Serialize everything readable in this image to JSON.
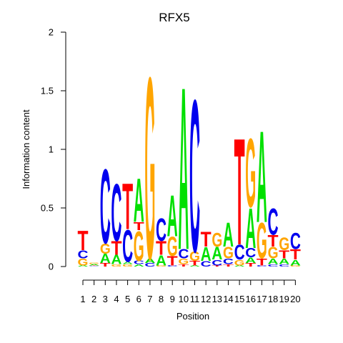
{
  "chart_data": {
    "type": "sequence-logo",
    "title": "RFX5",
    "xlabel": "Position",
    "ylabel": "Information content",
    "ylim": [
      0,
      2
    ],
    "y_ticks": [
      "0",
      "0.5",
      "1",
      "1.5",
      "2"
    ],
    "x_ticks": [
      "1",
      "2",
      "3",
      "4",
      "5",
      "6",
      "7",
      "8",
      "9",
      "10",
      "11",
      "12",
      "13",
      "14",
      "15",
      "16",
      "17",
      "18",
      "19",
      "20"
    ],
    "colors": {
      "A": "#00e000",
      "C": "#0000ee",
      "G": "#ffa500",
      "T": "#ff0000"
    },
    "positions": [
      {
        "pos": 1,
        "stack": [
          {
            "l": "A",
            "h": 0.01
          },
          {
            "l": "G",
            "h": 0.06
          },
          {
            "l": "C",
            "h": 0.07
          },
          {
            "l": "T",
            "h": 0.17
          }
        ]
      },
      {
        "pos": 2,
        "stack": [
          {
            "l": "C",
            "h": 0.005
          },
          {
            "l": "T",
            "h": 0.005
          },
          {
            "l": "A",
            "h": 0.01
          },
          {
            "l": "G",
            "h": 0.01
          }
        ]
      },
      {
        "pos": 3,
        "stack": [
          {
            "l": "T",
            "h": 0.03
          },
          {
            "l": "A",
            "h": 0.08
          },
          {
            "l": "G",
            "h": 0.09
          },
          {
            "l": "C",
            "h": 0.65
          }
        ]
      },
      {
        "pos": 4,
        "stack": [
          {
            "l": "G",
            "h": 0.02
          },
          {
            "l": "A",
            "h": 0.08
          },
          {
            "l": "T",
            "h": 0.12
          },
          {
            "l": "C",
            "h": 0.5
          }
        ]
      },
      {
        "pos": 5,
        "stack": [
          {
            "l": "G",
            "h": 0.02
          },
          {
            "l": "A",
            "h": 0.02
          },
          {
            "l": "C",
            "h": 0.28
          },
          {
            "l": "T",
            "h": 0.4
          }
        ]
      },
      {
        "pos": 6,
        "stack": [
          {
            "l": "A",
            "h": 0.02
          },
          {
            "l": "C",
            "h": 0.03
          },
          {
            "l": "G",
            "h": 0.26
          },
          {
            "l": "T",
            "h": 0.07
          },
          {
            "l": "A",
            "h": 0.38
          }
        ]
      },
      {
        "pos": 7,
        "stack": [
          {
            "l": "C",
            "h": 0.03
          },
          {
            "l": "A",
            "h": 0.04
          },
          {
            "l": "G",
            "h": 1.59
          }
        ]
      },
      {
        "pos": 8,
        "stack": [
          {
            "l": "G",
            "h": 0.01
          },
          {
            "l": "A",
            "h": 0.09
          },
          {
            "l": "T",
            "h": 0.12
          },
          {
            "l": "C",
            "h": 0.2
          }
        ]
      },
      {
        "pos": 9,
        "stack": [
          {
            "l": "C",
            "h": 0.01
          },
          {
            "l": "T",
            "h": 0.08
          },
          {
            "l": "G",
            "h": 0.17
          },
          {
            "l": "A",
            "h": 0.36
          }
        ]
      },
      {
        "pos": 10,
        "stack": [
          {
            "l": "T",
            "h": 0.02
          },
          {
            "l": "G",
            "h": 0.05
          },
          {
            "l": "C",
            "h": 0.08
          },
          {
            "l": "A",
            "h": 1.42
          }
        ]
      },
      {
        "pos": 11,
        "stack": [
          {
            "l": "A",
            "h": 0.01
          },
          {
            "l": "T",
            "h": 0.04
          },
          {
            "l": "G",
            "h": 0.08
          },
          {
            "l": "C",
            "h": 1.33
          }
        ]
      },
      {
        "pos": 12,
        "stack": [
          {
            "l": "C",
            "h": 0.05
          },
          {
            "l": "A",
            "h": 0.12
          },
          {
            "l": "T",
            "h": 0.13
          }
        ]
      },
      {
        "pos": 13,
        "stack": [
          {
            "l": "T",
            "h": 0.01
          },
          {
            "l": "C",
            "h": 0.05
          },
          {
            "l": "A",
            "h": 0.11
          },
          {
            "l": "G",
            "h": 0.12
          }
        ]
      },
      {
        "pos": 14,
        "stack": [
          {
            "l": "T",
            "h": 0.02
          },
          {
            "l": "C",
            "h": 0.05
          },
          {
            "l": "G",
            "h": 0.1
          },
          {
            "l": "A",
            "h": 0.21
          }
        ]
      },
      {
        "pos": 15,
        "stack": [
          {
            "l": "A",
            "h": 0.01
          },
          {
            "l": "G",
            "h": 0.05
          },
          {
            "l": "C",
            "h": 0.13
          },
          {
            "l": "T",
            "h": 0.93
          }
        ]
      },
      {
        "pos": 16,
        "stack": [
          {
            "l": "T",
            "h": 0.03
          },
          {
            "l": "A",
            "h": 0.05
          },
          {
            "l": "C",
            "h": 0.08
          },
          {
            "l": "A",
            "h": 0.35
          },
          {
            "l": "G",
            "h": 0.6
          }
        ]
      },
      {
        "pos": 17,
        "stack": [
          {
            "l": "C",
            "h": 0.01
          },
          {
            "l": "T",
            "h": 0.06
          },
          {
            "l": "G",
            "h": 0.31
          },
          {
            "l": "A",
            "h": 0.8
          }
        ]
      },
      {
        "pos": 18,
        "stack": [
          {
            "l": "C",
            "h": 0.02
          },
          {
            "l": "A",
            "h": 0.05
          },
          {
            "l": "G",
            "h": 0.1
          },
          {
            "l": "T",
            "h": 0.1
          },
          {
            "l": "C",
            "h": 0.23
          }
        ]
      },
      {
        "pos": 19,
        "stack": [
          {
            "l": "C",
            "h": 0.02
          },
          {
            "l": "A",
            "h": 0.05
          },
          {
            "l": "T",
            "h": 0.07
          },
          {
            "l": "G",
            "h": 0.11
          }
        ]
      },
      {
        "pos": 20,
        "stack": [
          {
            "l": "G",
            "h": 0.01
          },
          {
            "l": "A",
            "h": 0.05
          },
          {
            "l": "T",
            "h": 0.09
          },
          {
            "l": "C",
            "h": 0.14
          }
        ]
      }
    ]
  }
}
